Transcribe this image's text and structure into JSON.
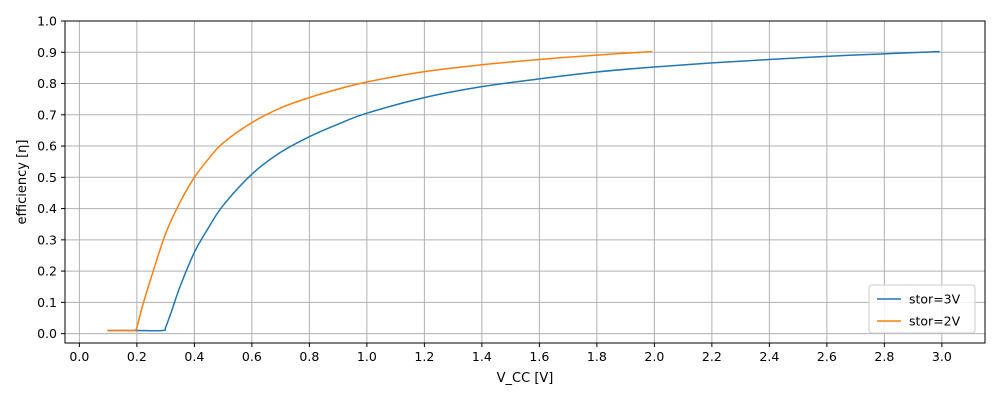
{
  "chart_data": {
    "type": "line",
    "title": "",
    "xlabel": "V_CC [V]",
    "ylabel": "efficiency [η]",
    "xlim": [
      -0.05,
      3.15
    ],
    "ylim": [
      -0.03,
      1.0
    ],
    "x_ticks": [
      0.0,
      0.2,
      0.4,
      0.6,
      0.8,
      1.0,
      1.2,
      1.4,
      1.6,
      1.8,
      2.0,
      2.2,
      2.4,
      2.6,
      2.8,
      3.0
    ],
    "x_tick_labels": [
      "0.0",
      "0.2",
      "0.4",
      "0.6",
      "0.8",
      "1.0",
      "1.2",
      "1.4",
      "1.6",
      "1.8",
      "2.0",
      "2.2",
      "2.4",
      "2.6",
      "2.8",
      "3.0"
    ],
    "y_ticks": [
      0.0,
      0.1,
      0.2,
      0.3,
      0.4,
      0.5,
      0.6,
      0.7,
      0.8,
      0.9,
      1.0
    ],
    "y_tick_labels": [
      "0.0",
      "0.1",
      "0.2",
      "0.3",
      "0.4",
      "0.5",
      "0.6",
      "0.7",
      "0.8",
      "0.9",
      "1.0"
    ],
    "grid": true,
    "legend_position": "bottom-right",
    "series": [
      {
        "name": "stor=3V",
        "color": "#1f77b4",
        "x": [
          0.1,
          0.2,
          0.29,
          0.3,
          0.32,
          0.35,
          0.4,
          0.45,
          0.5,
          0.6,
          0.7,
          0.8,
          0.9,
          1.0,
          1.2,
          1.4,
          1.6,
          1.8,
          2.0,
          2.2,
          2.4,
          2.6,
          2.8,
          2.99
        ],
        "y": [
          0.01,
          0.01,
          0.01,
          0.02,
          0.07,
          0.15,
          0.26,
          0.34,
          0.41,
          0.51,
          0.58,
          0.63,
          0.67,
          0.705,
          0.755,
          0.79,
          0.815,
          0.837,
          0.853,
          0.866,
          0.877,
          0.887,
          0.895,
          0.902
        ]
      },
      {
        "name": "stor=2V",
        "color": "#ff7f0e",
        "x": [
          0.1,
          0.15,
          0.19,
          0.2,
          0.22,
          0.25,
          0.3,
          0.35,
          0.4,
          0.45,
          0.5,
          0.6,
          0.7,
          0.8,
          0.9,
          1.0,
          1.2,
          1.4,
          1.6,
          1.8,
          1.99
        ],
        "y": [
          0.01,
          0.01,
          0.01,
          0.02,
          0.09,
          0.18,
          0.32,
          0.42,
          0.5,
          0.56,
          0.61,
          0.675,
          0.722,
          0.755,
          0.782,
          0.805,
          0.838,
          0.86,
          0.877,
          0.891,
          0.902
        ]
      }
    ]
  }
}
